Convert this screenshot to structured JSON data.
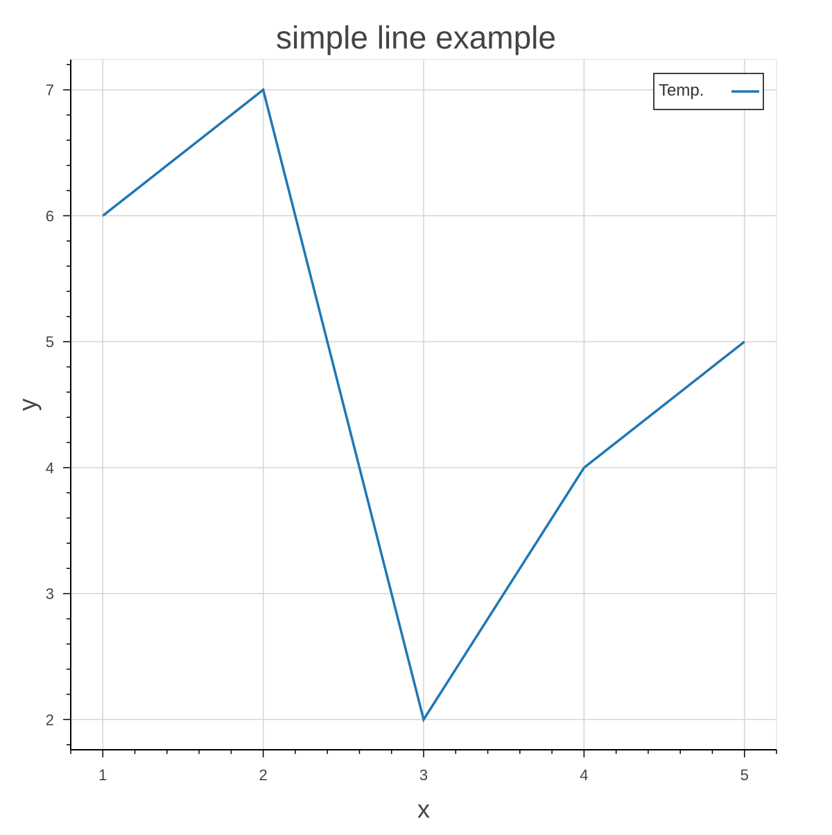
{
  "chart_data": {
    "type": "line",
    "title": "simple line example",
    "xlabel": "x",
    "ylabel": "y",
    "x": [
      1,
      2,
      3,
      4,
      5
    ],
    "series": [
      {
        "name": "Temp.",
        "values": [
          6,
          7,
          2,
          4,
          5
        ],
        "color": "#1f77b4"
      }
    ],
    "xlim": [
      0.8,
      5.2
    ],
    "ylim": [
      1.76,
      7.24
    ],
    "xticks": [
      1,
      2,
      3,
      4,
      5
    ],
    "yticks": [
      2,
      3,
      4,
      5,
      6,
      7
    ],
    "grid": true,
    "legend_position": "top-right"
  }
}
